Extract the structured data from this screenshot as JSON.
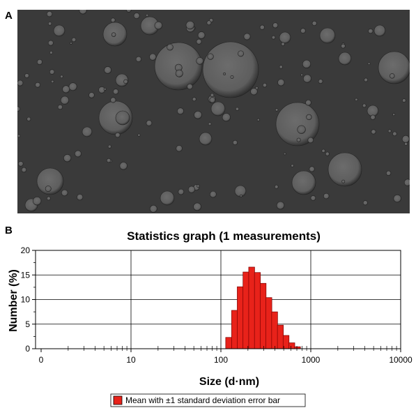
{
  "panels": {
    "a_label": "A",
    "b_label": "B"
  },
  "micrograph": {
    "background_color": "#3a3a3a",
    "droplet_color": "#5e5e5e"
  },
  "chart_data": {
    "type": "bar",
    "title": "Statistics graph (1 measurements)",
    "xlabel": "Size (d·nm)",
    "ylabel": "Number (%)",
    "x_scale": "log",
    "x_tick_labels": [
      "0",
      "10",
      "100",
      "1000",
      "10000"
    ],
    "xlim": [
      1,
      10000
    ],
    "y_ticks": [
      0,
      5,
      10,
      15,
      20
    ],
    "ylim": [
      0,
      20
    ],
    "grid": true,
    "bar_color": "#e8221a",
    "bar_edge_color": "#7a0000",
    "bins": [
      {
        "x": 122,
        "y": 2.3
      },
      {
        "x": 142,
        "y": 7.8
      },
      {
        "x": 164,
        "y": 12.6
      },
      {
        "x": 190,
        "y": 15.6
      },
      {
        "x": 220,
        "y": 16.6
      },
      {
        "x": 255,
        "y": 15.5
      },
      {
        "x": 295,
        "y": 13.3
      },
      {
        "x": 342,
        "y": 10.4
      },
      {
        "x": 396,
        "y": 7.5
      },
      {
        "x": 459,
        "y": 4.8
      },
      {
        "x": 531,
        "y": 2.7
      },
      {
        "x": 615,
        "y": 1.2
      },
      {
        "x": 712,
        "y": 0.4
      }
    ],
    "legend": {
      "label": "Mean with ±1 standard deviation error bar",
      "position": "bottom-center"
    }
  }
}
